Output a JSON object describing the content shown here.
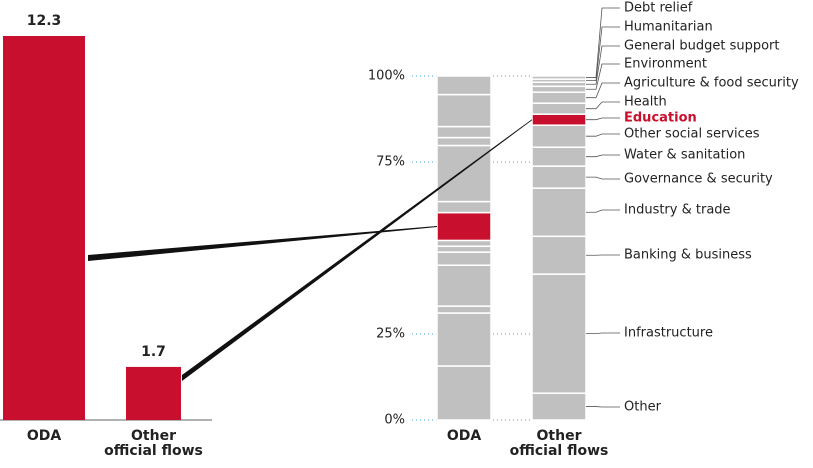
{
  "chart_data": [
    {
      "type": "bar",
      "categories": [
        "ODA",
        "Other\nofficial flows"
      ],
      "values": [
        12.3,
        1.7
      ],
      "color": "#c8102e"
    },
    {
      "type": "stacked_bar",
      "categories": [
        "ODA",
        "Other\nofficial flows"
      ],
      "ylim": [
        0,
        100
      ],
      "yticks": [
        {
          "value": 0,
          "label": "0%"
        },
        {
          "value": 25,
          "label": "25%"
        },
        {
          "value": 75,
          "label": "75%"
        },
        {
          "value": 100,
          "label": "100%"
        }
      ],
      "series": [
        {
          "name": "Other",
          "color": "#c0c0c0",
          "values": [
            15.7,
            7.8
          ]
        },
        {
          "name": "Infrastructure",
          "color": "#c0c0c0",
          "values": [
            15.4,
            34.6
          ]
        },
        {
          "name": "Banking & business",
          "color": "#c0c0c0",
          "values": [
            2,
            11
          ]
        },
        {
          "name": "Industry & trade",
          "color": "#c0c0c0",
          "values": [
            11.9,
            14
          ]
        },
        {
          "name": "Governance & security",
          "color": "#c0c0c0",
          "values": [
            3.8,
            6.4
          ]
        },
        {
          "name": "Water & sanitation",
          "color": "#c0c0c0",
          "values": [
            1.7,
            5.5
          ]
        },
        {
          "name": "Other social services",
          "color": "#c0c0c0",
          "values": [
            1.7,
            6.4
          ]
        },
        {
          "name": "Education",
          "color": "#c8102e",
          "values": [
            8.1,
            3.2
          ]
        },
        {
          "name": "Health",
          "color": "#c0c0c0",
          "values": [
            3.2,
            3.2
          ]
        },
        {
          "name": "Agriculture & food security",
          "color": "#c0c0c0",
          "values": [
            16.3,
            3.2
          ]
        },
        {
          "name": "Environment",
          "color": "#c0c0c0",
          "values": [
            2.3,
            1.7
          ]
        },
        {
          "name": "General budget support",
          "color": "#c0c0c0",
          "values": [
            3.2,
            1.2
          ]
        },
        {
          "name": "Humanitarian",
          "color": "#c0c0c0",
          "values": [
            9.3,
            0.9
          ]
        },
        {
          "name": "Debt relief",
          "color": "#c0c0c0",
          "values": [
            5.4,
            0.9
          ]
        }
      ]
    }
  ]
}
